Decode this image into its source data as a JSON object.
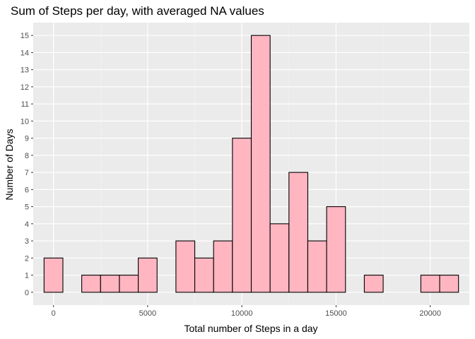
{
  "chart_data": {
    "type": "bar",
    "title": "Sum of Steps per day, with averaged NA values",
    "xlabel": "Total number of Steps in a day",
    "ylabel": "Number of Days",
    "bin_width": 1000,
    "bins": [
      {
        "center": 0,
        "count": 2
      },
      {
        "center": 1000,
        "count": 0
      },
      {
        "center": 2000,
        "count": 1
      },
      {
        "center": 3000,
        "count": 1
      },
      {
        "center": 4000,
        "count": 1
      },
      {
        "center": 5000,
        "count": 2
      },
      {
        "center": 6000,
        "count": 0
      },
      {
        "center": 7000,
        "count": 3
      },
      {
        "center": 8000,
        "count": 2
      },
      {
        "center": 9000,
        "count": 3
      },
      {
        "center": 10000,
        "count": 9
      },
      {
        "center": 11000,
        "count": 15
      },
      {
        "center": 12000,
        "count": 4
      },
      {
        "center": 13000,
        "count": 7
      },
      {
        "center": 14000,
        "count": 3
      },
      {
        "center": 15000,
        "count": 5
      },
      {
        "center": 16000,
        "count": 0
      },
      {
        "center": 17000,
        "count": 1
      },
      {
        "center": 18000,
        "count": 0
      },
      {
        "center": 19000,
        "count": 0
      },
      {
        "center": 20000,
        "count": 1
      },
      {
        "center": 21000,
        "count": 1
      }
    ],
    "xlim": [
      -1075,
      22075
    ],
    "ylim": [
      -0.75,
      15.75
    ],
    "x_ticks": [
      0,
      5000,
      10000,
      15000,
      20000
    ],
    "x_tick_labels": [
      "0",
      "5000",
      "10000",
      "15000",
      "20000"
    ],
    "y_ticks": [
      0,
      1,
      2,
      3,
      4,
      5,
      6,
      7,
      8,
      9,
      10,
      11,
      12,
      13,
      14,
      15
    ],
    "y_tick_labels": [
      "0",
      "1",
      "2",
      "3",
      "4",
      "5",
      "6",
      "7",
      "8",
      "9",
      "10",
      "11",
      "12",
      "13",
      "14",
      "15"
    ],
    "grid": true,
    "legend": "none",
    "colors": {
      "bar_fill": "#FFB6C1",
      "bar_outline": "#000000",
      "panel_background": "#EBEBEB",
      "grid_major": "#FFFFFF",
      "grid_minor": "#F5F5F5",
      "tick_label": "#4D4D4D"
    }
  }
}
